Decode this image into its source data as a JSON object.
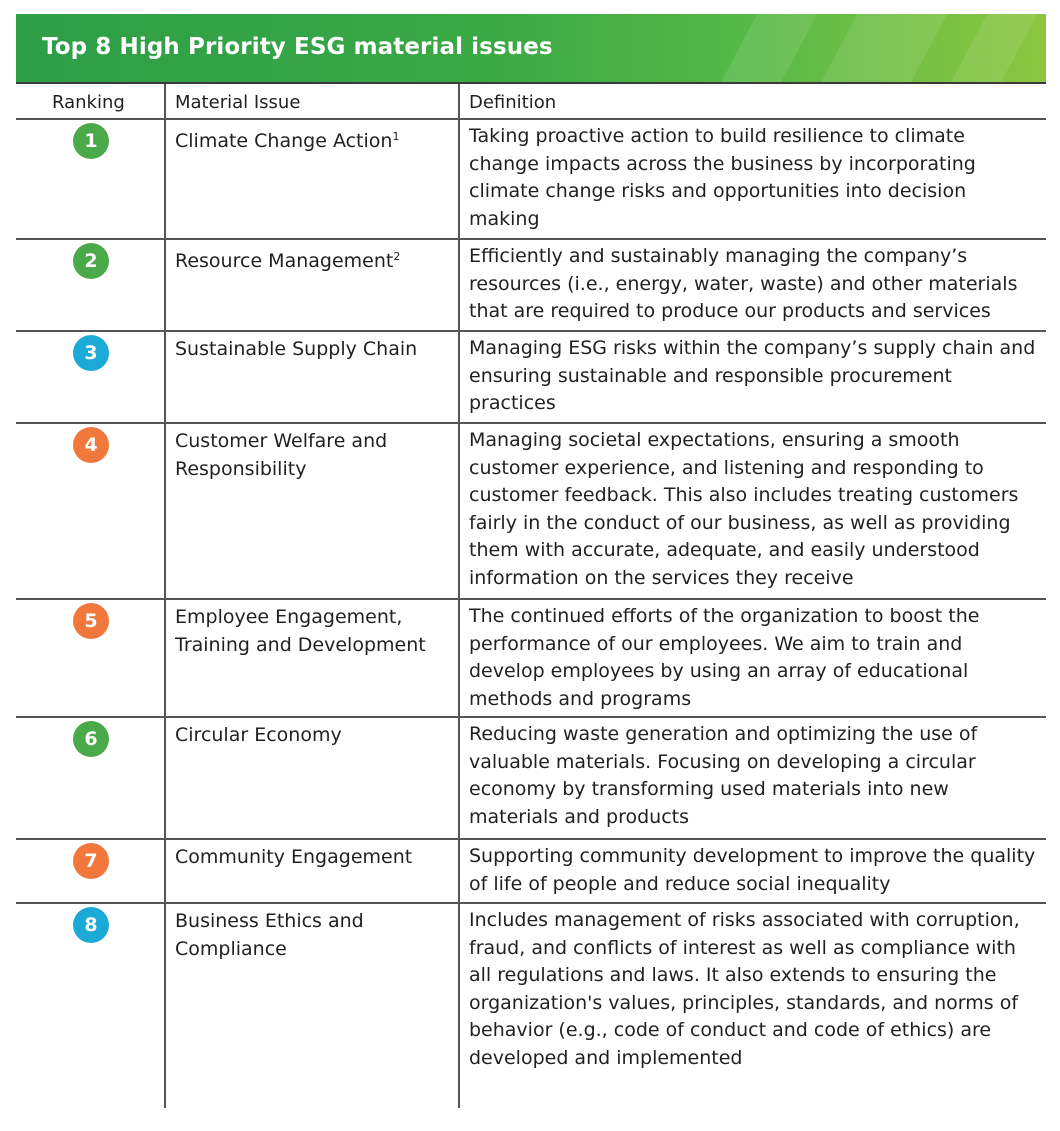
{
  "title": "Top 8 High Priority ESG material issues",
  "headers": {
    "ranking": "Ranking",
    "issue": "Material Issue",
    "definition": "Definition"
  },
  "colors": {
    "green": "#4aaa4a",
    "blue": "#1ba9d8",
    "orange": "#f2773a"
  },
  "rows": [
    {
      "rank": "1",
      "color": "green",
      "issue": "Climate Change Action",
      "sup": "1",
      "definition": "Taking proactive action to build resilience to climate change impacts across the business by incorporating climate change risks and opportunities into decision making"
    },
    {
      "rank": "2",
      "color": "green",
      "issue": "Resource Management",
      "sup": "2",
      "definition": "Efficiently and sustainably managing the company’s resources (i.e., energy, water, waste) and other materials that are required to produce our products and services"
    },
    {
      "rank": "3",
      "color": "blue",
      "issue": "Sustainable Supply Chain",
      "sup": "",
      "definition": "Managing ESG risks within the company’s supply chain and ensuring sustainable and responsible procurement practices"
    },
    {
      "rank": "4",
      "color": "orange",
      "issue": "Customer Welfare and Responsibility",
      "sup": "",
      "definition": "Managing societal expectations, ensuring a smooth customer experience, and listening and responding to customer feedback. This also includes treating customers fairly in the conduct of our business, as well as providing them with accurate, adequate, and easily understood information on the services they receive"
    },
    {
      "rank": "5",
      "color": "orange",
      "issue": "Employee Engagement, Training and Development",
      "sup": "",
      "definition": "The continued efforts of the organization to boost the performance of our employees. We aim to train and develop employees by using an array of educational methods and programs"
    },
    {
      "rank": "6",
      "color": "green",
      "issue": "Circular Economy",
      "sup": "",
      "definition": "Reducing waste generation and optimizing the use of valuable materials. Focusing on developing a circular economy by transforming used materials into new materials and products"
    },
    {
      "rank": "7",
      "color": "orange",
      "issue": "Community Engagement",
      "sup": "",
      "definition": "Supporting community development to improve the quality of life of people and reduce social inequality"
    },
    {
      "rank": "8",
      "color": "blue",
      "issue": "Business Ethics and Compliance",
      "sup": "",
      "definition": "Includes management of risks associated with corruption, fraud, and conflicts of interest as well as compliance with all regulations and laws. It also extends to ensuring the organization's values, principles, standards, and norms of behavior (e.g., code of conduct and code of ethics) are developed and implemented"
    }
  ]
}
